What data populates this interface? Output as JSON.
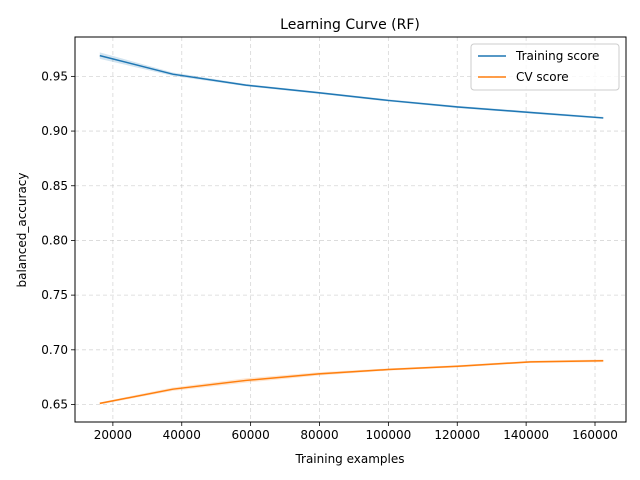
{
  "chart_data": {
    "type": "line",
    "title": "Learning Curve (RF)",
    "xlabel": "Training examples",
    "ylabel": "balanced_accuracy",
    "xlim": [
      9000,
      169000
    ],
    "ylim": [
      0.634,
      0.986
    ],
    "xticks": [
      20000,
      40000,
      60000,
      80000,
      100000,
      120000,
      140000,
      160000
    ],
    "yticks": [
      0.65,
      0.7,
      0.75,
      0.8,
      0.85,
      0.9,
      0.95
    ],
    "grid": true,
    "legend_position": "top-right",
    "series": [
      {
        "name": "Training score",
        "color": "#1f77b4",
        "x": [
          16200,
          37400,
          58600,
          79800,
          100000,
          120200,
          141300,
          162400
        ],
        "y": [
          0.969,
          0.952,
          0.942,
          0.935,
          0.928,
          0.922,
          0.917,
          0.912
        ],
        "band": [
          0.003,
          0.0015,
          0.001,
          0.001,
          0.001,
          0.001,
          0.001,
          0.001
        ]
      },
      {
        "name": "CV score",
        "color": "#ff7f0e",
        "x": [
          16200,
          37400,
          58600,
          79800,
          100000,
          120200,
          141300,
          162400
        ],
        "y": [
          0.651,
          0.664,
          0.672,
          0.678,
          0.682,
          0.685,
          0.689,
          0.69
        ],
        "band": [
          0.001,
          0.0015,
          0.002,
          0.0015,
          0.001,
          0.001,
          0.001,
          0.0012
        ]
      }
    ]
  }
}
